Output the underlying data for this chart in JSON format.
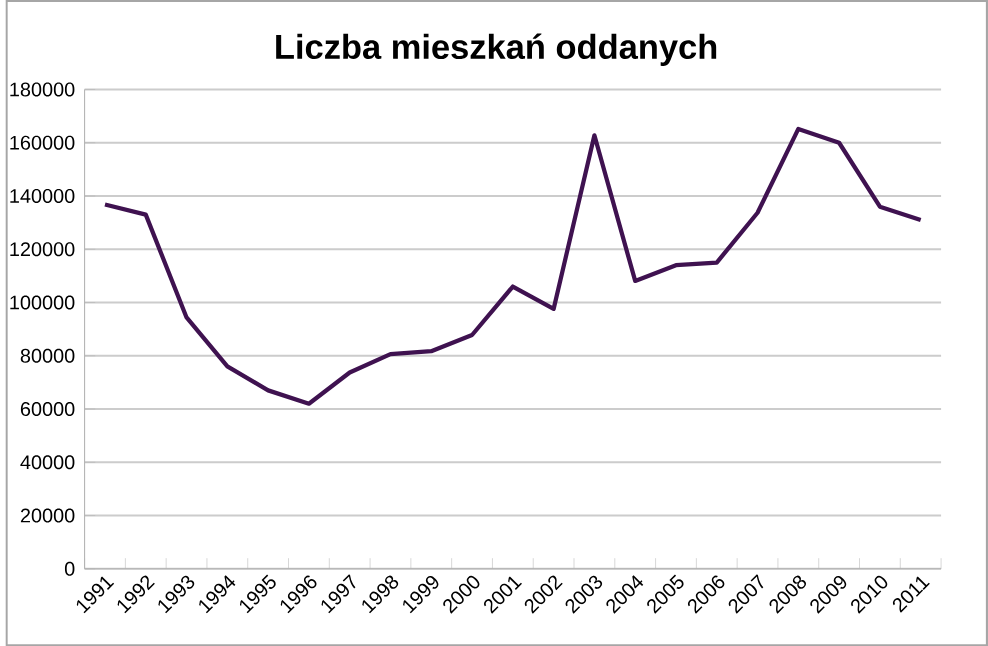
{
  "chart_data": {
    "type": "line",
    "title": "Liczba mieszkań oddanych",
    "categories": [
      "1991",
      "1992",
      "1993",
      "1994",
      "1995",
      "1996",
      "1997",
      "1998",
      "1999",
      "2000",
      "2001",
      "2002",
      "2003",
      "2004",
      "2005",
      "2006",
      "2007",
      "2008",
      "2009",
      "2010",
      "2011"
    ],
    "series": [
      {
        "color": "#3f1250",
        "values": [
          136800,
          133000,
          94400,
          76000,
          67000,
          62000,
          73700,
          80600,
          81700,
          87800,
          106000,
          97600,
          162800,
          108100,
          114000,
          115000,
          133700,
          165200,
          160000,
          136000,
          131000
        ]
      }
    ],
    "ylim": [
      0,
      180000
    ],
    "yticks": [
      0,
      20000,
      40000,
      60000,
      80000,
      100000,
      120000,
      140000,
      160000,
      180000
    ],
    "grid": "y",
    "legend": false,
    "marker": "none",
    "line_style": "solid"
  }
}
